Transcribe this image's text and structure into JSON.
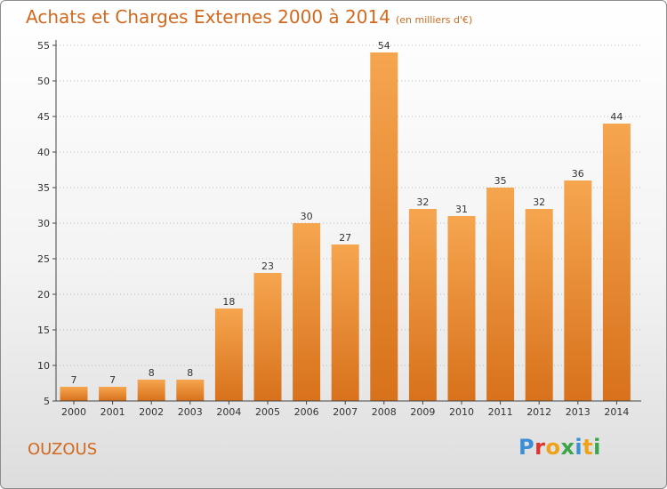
{
  "title": "Achats et Charges Externes 2000 à 2014",
  "unit_note": "(en milliers d'€)",
  "commune": "OUZOUS",
  "logo": {
    "text": "Proxiti",
    "letters": [
      {
        "char": "P",
        "color": "#3a8fd6"
      },
      {
        "char": "r",
        "color": "#e2342b"
      },
      {
        "char": "o",
        "color": "#f0a11a"
      },
      {
        "char": "x",
        "color": "#3aa64a"
      },
      {
        "char": "i",
        "color": "#3a8fd6"
      },
      {
        "char": "t",
        "color": "#f0a11a"
      },
      {
        "char": "i",
        "color": "#3aa64a"
      }
    ]
  },
  "colors": {
    "accent": "#d2691e",
    "bar_top": "#f6a54f",
    "bar_bottom": "#d8711b",
    "axis": "#444444",
    "grid": "#bbbbbb"
  },
  "chart_data": {
    "type": "bar",
    "title": "Achats et Charges Externes 2000 à 2014",
    "xlabel": "",
    "ylabel": "",
    "categories": [
      "2000",
      "2001",
      "2002",
      "2003",
      "2004",
      "2005",
      "2006",
      "2007",
      "2008",
      "2009",
      "2010",
      "2011",
      "2012",
      "2013",
      "2014"
    ],
    "values": [
      7,
      7,
      8,
      8,
      18,
      23,
      30,
      27,
      54,
      32,
      31,
      35,
      32,
      36,
      44
    ],
    "ylim": [
      5,
      55
    ],
    "yticks": [
      5,
      10,
      15,
      20,
      25,
      30,
      35,
      40,
      45,
      50,
      55
    ],
    "grid": true,
    "data_labels": true
  }
}
